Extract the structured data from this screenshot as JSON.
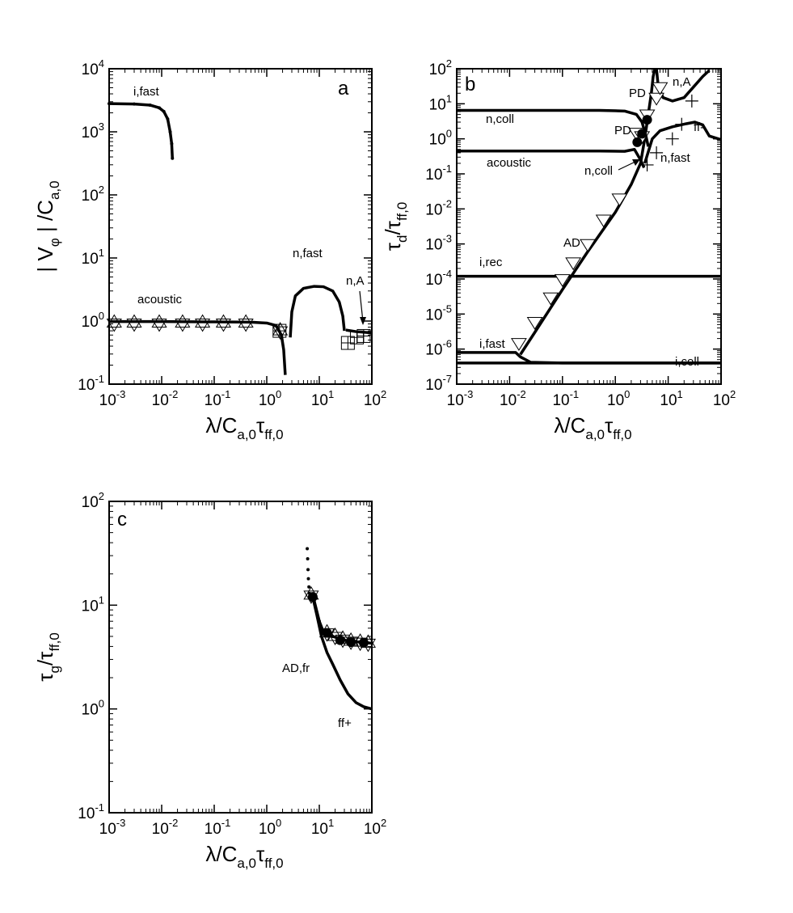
{
  "chart_data": [
    {
      "panel": "a",
      "type": "scatter",
      "xscale": "log",
      "yscale": "log",
      "xlim": [
        0.001,
        100
      ],
      "ylim": [
        0.1,
        10000
      ],
      "xlabel": {
        "main": "λ/C",
        "sub1": "a,0",
        "main2": "τ",
        "sub2": "ff,0"
      },
      "ylabel": {
        "main": "| V",
        "sub1": "φ",
        "main2": " | /C",
        "sub2": "a,0"
      },
      "xticks": [
        "10^-3",
        "10^-2",
        "10^-1",
        "10^0",
        "10^1",
        "10^2"
      ],
      "yticks": [
        "10^-1",
        "10^0",
        "10^1",
        "10^2",
        "10^3",
        "10^4"
      ],
      "annotations": [
        "a",
        "i,fast",
        "acoustic",
        "n,fast",
        "n,A"
      ],
      "series": [
        {
          "name": "i,fast",
          "style": "line-dots",
          "points": [
            [
              0.001,
              2800
            ],
            [
              0.003,
              2760
            ],
            [
              0.006,
              2650
            ],
            [
              0.009,
              2400
            ],
            [
              0.011,
              2100
            ],
            [
              0.013,
              1600
            ],
            [
              0.0145,
              1000
            ],
            [
              0.0155,
              650
            ],
            [
              0.016,
              380
            ]
          ]
        },
        {
          "name": "acoustic",
          "style": "line",
          "points": [
            [
              0.001,
              0.98
            ],
            [
              0.01,
              0.98
            ],
            [
              0.1,
              0.97
            ],
            [
              0.5,
              0.96
            ],
            [
              1.0,
              0.93
            ],
            [
              1.5,
              0.85
            ],
            [
              1.9,
              0.6
            ],
            [
              2.1,
              0.35
            ],
            [
              2.25,
              0.14
            ]
          ]
        },
        {
          "name": "n,fast",
          "style": "line",
          "points": [
            [
              2.8,
              0.55
            ],
            [
              3.0,
              1.4
            ],
            [
              3.5,
              2.5
            ],
            [
              5.0,
              3.3
            ],
            [
              8.0,
              3.55
            ],
            [
              12,
              3.5
            ],
            [
              18,
              3.0
            ],
            [
              24,
              2.0
            ],
            [
              28,
              1.2
            ],
            [
              30,
              0.7
            ]
          ]
        },
        {
          "name": "n,A",
          "style": "line",
          "points": [
            [
              32,
              0.72
            ],
            [
              50,
              0.68
            ],
            [
              100,
              0.65
            ]
          ]
        },
        {
          "name": "star markers",
          "style": "star",
          "points": [
            [
              0.00125,
              0.93
            ],
            [
              0.003,
              0.93
            ],
            [
              0.009,
              0.93
            ],
            [
              0.025,
              0.93
            ],
            [
              0.06,
              0.93
            ],
            [
              0.15,
              0.93
            ],
            [
              0.4,
              0.93
            ],
            [
              1.8,
              0.7
            ]
          ]
        },
        {
          "name": "square markers",
          "style": "square",
          "points": [
            [
              1.75,
              0.7
            ],
            [
              35,
              0.45
            ],
            [
              52,
              0.55
            ],
            [
              70,
              0.58
            ]
          ]
        }
      ]
    },
    {
      "panel": "b",
      "type": "scatter",
      "xscale": "log",
      "yscale": "log",
      "xlim": [
        0.001,
        100
      ],
      "ylim": [
        1e-07,
        100
      ],
      "xlabel": {
        "main": "λ/C",
        "sub1": "a,0",
        "main2": "τ",
        "sub2": "ff,0"
      },
      "ylabel": {
        "main": "τ",
        "sub1": "d",
        "main2": "/τ",
        "sub2": "ff,0"
      },
      "xticks": [
        "10^-3",
        "10^-2",
        "10^-1",
        "10^0",
        "10^1",
        "10^2"
      ],
      "yticks": [
        "10^-7",
        "10^-6",
        "10^-5",
        "10^-4",
        "10^-3",
        "10^-2",
        "10^-1",
        "10^0",
        "10^1",
        "10^2"
      ],
      "annotations": [
        "b",
        "n,coll",
        "acoustic",
        "PD",
        "PD",
        "n,A",
        "ff-",
        "n,fast",
        "n,coll",
        "AD",
        "i,rec",
        "i,fast",
        "i,coll"
      ],
      "series": [
        {
          "name": "n,coll",
          "style": "line",
          "points": [
            [
              0.001,
              6.5
            ],
            [
              0.5,
              6.5
            ],
            [
              1.5,
              6.2
            ],
            [
              2.5,
              5
            ],
            [
              3.2,
              3
            ],
            [
              3.8,
              1.2
            ],
            [
              4.2,
              0.6
            ]
          ]
        },
        {
          "name": "acoustic",
          "style": "line",
          "points": [
            [
              0.001,
              0.45
            ],
            [
              0.5,
              0.45
            ],
            [
              1.5,
              0.44
            ],
            [
              2.3,
              0.5
            ],
            [
              3.0,
              0.25
            ],
            [
              3.5,
              0.15
            ]
          ]
        },
        {
          "name": "AD",
          "style": "line",
          "points": [
            [
              0.016,
              7e-07
            ],
            [
              0.03,
              3e-06
            ],
            [
              0.1,
              5e-05
            ],
            [
              0.3,
              0.0006
            ],
            [
              1.0,
              0.008
            ],
            [
              2.0,
              0.05
            ],
            [
              3.0,
              0.2
            ],
            [
              3.6,
              1.0
            ],
            [
              4.2,
              5
            ],
            [
              4.8,
              20
            ],
            [
              5.2,
              60
            ],
            [
              5.6,
              100
            ]
          ]
        },
        {
          "name": "n,fast",
          "style": "line",
          "points": [
            [
              3.6,
              0.2
            ],
            [
              5.0,
              1.0
            ],
            [
              7.0,
              1.7
            ],
            [
              12,
              2.2
            ],
            [
              22,
              2.7
            ],
            [
              32,
              3.0
            ],
            [
              45,
              2.5
            ],
            [
              60,
              1.2
            ],
            [
              100,
              0.95
            ]
          ]
        },
        {
          "name": "n,A",
          "style": "line",
          "points": [
            [
              6.0,
              100
            ],
            [
              6.5,
              30
            ],
            [
              8.0,
              15
            ],
            [
              12,
              12
            ],
            [
              20,
              15
            ],
            [
              30,
              30
            ],
            [
              45,
              60
            ],
            [
              60,
              90
            ]
          ]
        },
        {
          "name": "i,rec",
          "style": "line",
          "points": [
            [
              0.001,
              0.00012
            ],
            [
              100,
              0.00012
            ]
          ]
        },
        {
          "name": "i,fast",
          "style": "line",
          "points": [
            [
              0.001,
              8e-07
            ],
            [
              0.013,
              8e-07
            ],
            [
              0.016,
              6e-07
            ],
            [
              0.025,
              4.2e-07
            ],
            [
              0.1,
              4e-07
            ],
            [
              100,
              4e-07
            ]
          ]
        },
        {
          "name": "i,coll",
          "style": "line",
          "points": [
            [
              0.001,
              4e-07
            ],
            [
              100,
              4e-07
            ]
          ]
        },
        {
          "name": "triangles",
          "style": "triangle",
          "points": [
            [
              0.015,
              1.5e-06
            ],
            [
              0.03,
              6e-06
            ],
            [
              0.06,
              3e-05
            ],
            [
              0.1,
              0.0001
            ],
            [
              0.16,
              0.0003
            ],
            [
              0.3,
              0.001
            ],
            [
              0.6,
              0.005
            ],
            [
              1.2,
              0.02
            ],
            [
              2.5,
              1.5
            ],
            [
              3.2,
              1.2
            ],
            [
              4.0,
              5
            ],
            [
              6.0,
              15
            ],
            [
              7.0,
              30
            ]
          ]
        },
        {
          "name": "crosses",
          "style": "plus",
          "points": [
            [
              4.0,
              0.18
            ],
            [
              6.0,
              0.4
            ],
            [
              12,
              1.0
            ],
            [
              18,
              2.6
            ],
            [
              28,
              12
            ]
          ]
        },
        {
          "name": "filled circles",
          "style": "circle",
          "points": [
            [
              2.6,
              0.8
            ],
            [
              3.2,
              1.4
            ],
            [
              4.0,
              3.5
            ]
          ]
        }
      ]
    },
    {
      "panel": "c",
      "type": "scatter",
      "xscale": "log",
      "yscale": "log",
      "xlim": [
        0.001,
        100
      ],
      "ylim": [
        0.1,
        100
      ],
      "xlabel": {
        "main": "λ/C",
        "sub1": "a,0",
        "main2": "τ",
        "sub2": "ff,0"
      },
      "ylabel": {
        "main": "τ",
        "sub1": "g",
        "main2": "/τ",
        "sub2": "ff,0"
      },
      "xticks": [
        "10^-3",
        "10^-2",
        "10^-1",
        "10^0",
        "10^1",
        "10^2"
      ],
      "yticks": [
        "10^-1",
        "10^0",
        "10^1",
        "10^2"
      ],
      "annotations": [
        "c",
        "AD,fr",
        "ff+"
      ],
      "series": [
        {
          "name": "upper dots",
          "style": "dots",
          "points": [
            [
              5.9,
              35
            ],
            [
              6.0,
              28
            ],
            [
              6.1,
              22
            ],
            [
              6.2,
              18
            ],
            [
              6.35,
              15
            ],
            [
              6.5,
              13
            ]
          ]
        },
        {
          "name": "AD,fr",
          "style": "line-dots",
          "points": [
            [
              7.0,
              12
            ],
            [
              8,
              11
            ],
            [
              10,
              7
            ],
            [
              12,
              5.5
            ],
            [
              18,
              5.0
            ],
            [
              30,
              4.6
            ],
            [
              60,
              4.4
            ],
            [
              100,
              4.3
            ]
          ]
        },
        {
          "name": "ff+",
          "style": "line",
          "points": [
            [
              7.5,
              12
            ],
            [
              9,
              8
            ],
            [
              11,
              5
            ],
            [
              14,
              3.5
            ],
            [
              18,
              2.7
            ],
            [
              25,
              1.9
            ],
            [
              35,
              1.4
            ],
            [
              50,
              1.15
            ],
            [
              70,
              1.05
            ],
            [
              100,
              1.0
            ]
          ]
        },
        {
          "name": "stars",
          "style": "star",
          "points": [
            [
              7.0,
              12.5
            ],
            [
              14,
              5.4
            ],
            [
              20,
              5.0
            ],
            [
              28,
              4.7
            ],
            [
              40,
              4.5
            ],
            [
              60,
              4.4
            ],
            [
              85,
              4.3
            ]
          ]
        },
        {
          "name": "filled circles",
          "style": "circle",
          "points": [
            [
              7.5,
              12
            ],
            [
              14,
              5.4
            ],
            [
              25,
              4.6
            ],
            [
              40,
              4.4
            ],
            [
              70,
              4.35
            ]
          ]
        }
      ]
    }
  ]
}
